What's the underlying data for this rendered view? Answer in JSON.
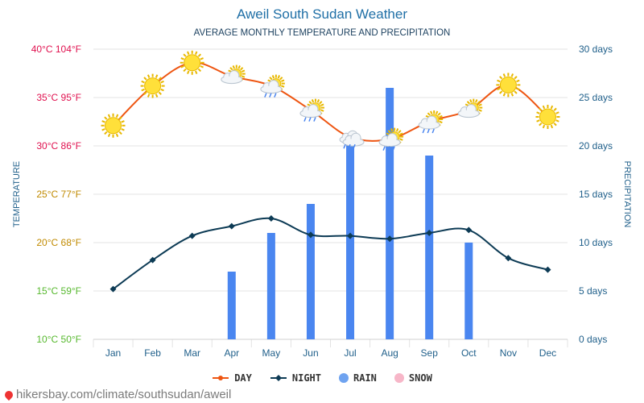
{
  "header": {
    "title": "Aweil South Sudan Weather",
    "subtitle": "AVERAGE MONTHLY TEMPERATURE AND PRECIPITATION"
  },
  "colors": {
    "day": "#ee5511",
    "night": "#0d3b55",
    "rain": "#4a86f0",
    "snow": "#f7b6c8",
    "left_axis_hot": "#e0114f",
    "left_axis_mild": "#c08a00",
    "left_axis_cool": "#56b82d",
    "right_axis": "#1f5f8a",
    "grid": "#e3e3e3"
  },
  "chart_data": {
    "type": "line",
    "title": "Aweil South Sudan Weather",
    "subtitle": "AVERAGE MONTHLY TEMPERATURE AND PRECIPITATION",
    "categories": [
      "Jan",
      "Feb",
      "Mar",
      "Apr",
      "May",
      "Jun",
      "Jul",
      "Aug",
      "Sep",
      "Oct",
      "Nov",
      "Dec"
    ],
    "ylabel": "TEMPERATURE",
    "y2label": "PRECIPITATION",
    "ylim": [
      10,
      40
    ],
    "y2lim": [
      0,
      30
    ],
    "left_ticks": [
      {
        "value": 40,
        "label": "40°C 104°F"
      },
      {
        "value": 35,
        "label": "35°C 95°F"
      },
      {
        "value": 30,
        "label": "30°C 86°F"
      },
      {
        "value": 25,
        "label": "25°C 77°F"
      },
      {
        "value": 20,
        "label": "20°C 68°F"
      },
      {
        "value": 15,
        "label": "15°C 59°F"
      },
      {
        "value": 10,
        "label": "10°C 50°F"
      }
    ],
    "right_ticks": [
      {
        "value": 30,
        "label": "30 days"
      },
      {
        "value": 25,
        "label": "25 days"
      },
      {
        "value": 20,
        "label": "20 days"
      },
      {
        "value": 15,
        "label": "15 days"
      },
      {
        "value": 10,
        "label": "10 days"
      },
      {
        "value": 5,
        "label": "5 days"
      },
      {
        "value": 0,
        "label": "0 days"
      }
    ],
    "series": [
      {
        "name": "DAY",
        "type": "line",
        "axis": "left",
        "values": [
          32.1,
          36.2,
          38.6,
          37.2,
          36.2,
          33.7,
          30.9,
          30.7,
          32.5,
          33.7,
          36.3,
          33.0
        ]
      },
      {
        "name": "NIGHT",
        "type": "line",
        "axis": "left",
        "values": [
          15.2,
          18.2,
          20.7,
          21.7,
          22.5,
          20.8,
          20.7,
          20.4,
          21.0,
          21.3,
          18.4,
          17.2
        ]
      },
      {
        "name": "RAIN",
        "type": "bar",
        "axis": "right",
        "values": [
          0,
          0,
          0,
          7,
          11,
          14,
          21,
          26,
          19,
          10,
          0,
          0
        ]
      },
      {
        "name": "SNOW",
        "type": "bar",
        "axis": "right",
        "values": [
          0,
          0,
          0,
          0,
          0,
          0,
          0,
          0,
          0,
          0,
          0,
          0
        ]
      }
    ],
    "day_icons": [
      "sun",
      "sun",
      "sun",
      "sun-cloud",
      "sun-cloud-rain",
      "sun-cloud-rain",
      "cloud-rain",
      "sun-cloud-rain",
      "sun-cloud-rain",
      "sun-cloud",
      "sun",
      "sun"
    ],
    "grid": true,
    "legend_position": "bottom"
  },
  "legend": [
    {
      "label": "DAY",
      "marker": "line-dot",
      "color": "#ee5511"
    },
    {
      "label": "NIGHT",
      "marker": "line-diamond",
      "color": "#0d3b55"
    },
    {
      "label": "RAIN",
      "marker": "dot",
      "color": "#6fa3f0"
    },
    {
      "label": "SNOW",
      "marker": "dot",
      "color": "#f7b6c8"
    }
  ],
  "footer": {
    "source": "hikersbay.com/climate/southsudan/aweil"
  }
}
